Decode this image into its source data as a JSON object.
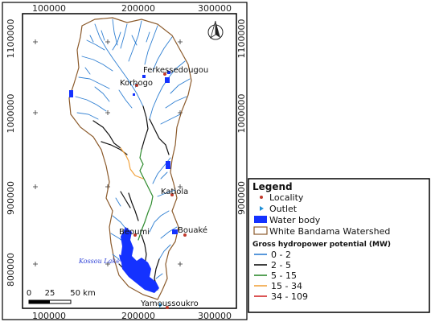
{
  "grid": {
    "x_labels": [
      "100000",
      "200000",
      "300000"
    ],
    "y_labels": [
      "1100000",
      "1000000",
      "900000",
      "800000"
    ]
  },
  "places": {
    "ferkessedougou": "Ferkessedougou",
    "korhogo": "Korhogo",
    "katiola": "Katiola",
    "beoumi": "Béoumi",
    "bouake": "Bouaké",
    "yamoussoukro": "Yamoussoukro",
    "lake": "Kossou Lake"
  },
  "scale_bar": {
    "labels": [
      "0",
      "25",
      "50 km"
    ]
  },
  "legend": {
    "title": "Legend",
    "items": {
      "locality": "Locality",
      "outlet": "Outlet",
      "water_body": "Water body",
      "watershed": "White Bandama Watershed"
    },
    "potential_title": "Gross hydropower potential (MW)",
    "classes": [
      {
        "label": "0 - 2",
        "color": "#2f7fd2"
      },
      {
        "label": "2 - 5",
        "color": "#111111"
      },
      {
        "label": "5 - 15",
        "color": "#2e8b2e"
      },
      {
        "label": "15 - 34",
        "color": "#f2a440"
      },
      {
        "label": "34 - 109",
        "color": "#d22a2a"
      }
    ]
  },
  "colors": {
    "watershed_border": "#8b5a2b",
    "water_body": "#1432ff",
    "locality": "#c0392b",
    "outlet": "#1f8fd6",
    "frame": "#000000"
  },
  "icons": {
    "north_arrow": "north-arrow-icon"
  }
}
